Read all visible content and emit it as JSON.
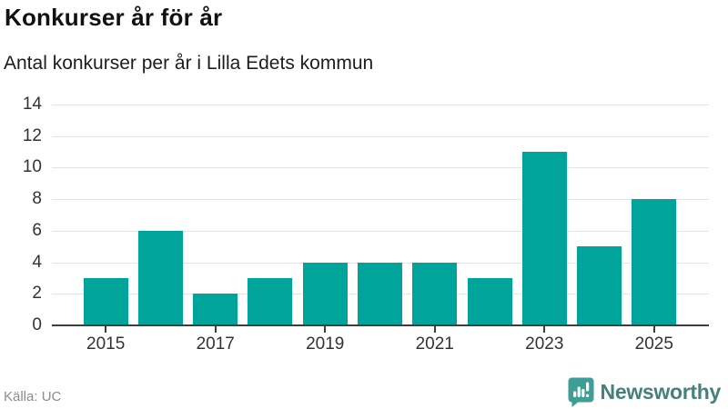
{
  "header": {
    "title": "Konkurser år för år",
    "subtitle": "Antal konkurser per år i Lilla Edets kommun"
  },
  "chart_data": {
    "type": "bar",
    "categories": [
      "2015",
      "2016",
      "2017",
      "2018",
      "2019",
      "2020",
      "2021",
      "2022",
      "2023",
      "2024",
      "2025"
    ],
    "values": [
      3,
      6,
      2,
      3,
      4,
      4,
      4,
      3,
      11,
      5,
      8
    ],
    "title": "Konkurser år för år",
    "subtitle": "Antal konkurser per år i Lilla Edets kommun",
    "xlabel": "",
    "ylabel": "",
    "ylim": [
      0,
      14
    ],
    "yticks": [
      0,
      2,
      4,
      6,
      8,
      10,
      12,
      14
    ],
    "xtick_label_step": 2,
    "grid": "horizontal",
    "legend": "none",
    "bar_color": "#00a49a"
  },
  "footer": {
    "source": "Källa: UC",
    "brand": "Newsworthy"
  },
  "colors": {
    "bar": "#00a49a",
    "axis": "#3d3d3d",
    "grid": "#e4e4e4",
    "tick_label": "#333333",
    "title": "#111111",
    "subtitle": "#1d1d1d",
    "source": "#8c8c8c",
    "brand_text": "#46807c",
    "brand_icon": "#3d9e95"
  }
}
